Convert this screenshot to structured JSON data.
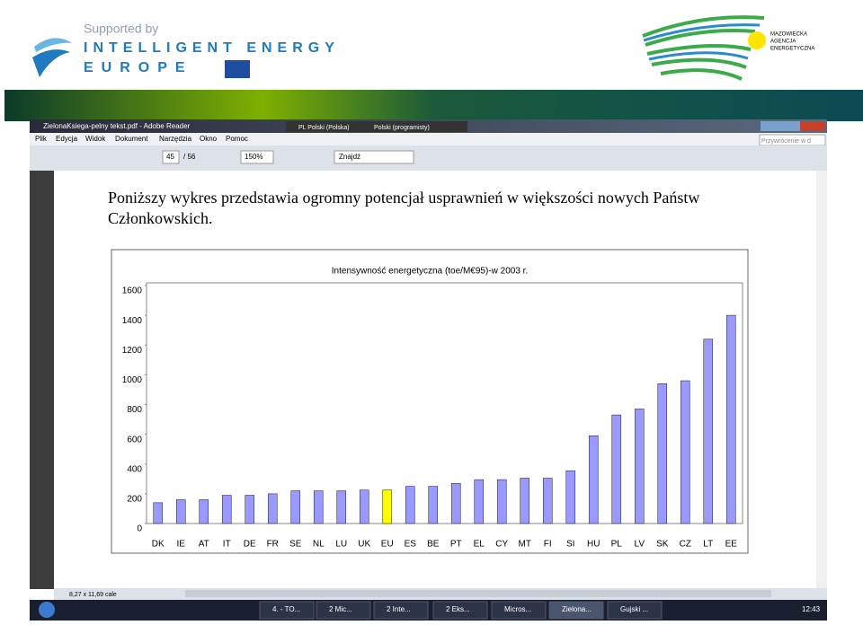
{
  "header": {
    "supported_by": "Supported by",
    "brand_line1": "INTELLIGENT ENERGY",
    "brand_line2": "EUROPE",
    "partner": [
      "MAZOWIECKA",
      "AGENCJA",
      "ENERGETYCZNA"
    ]
  },
  "window": {
    "title": "ZielonaKsiega-pelny tekst.pdf - Adobe Reader",
    "language": [
      "PL Polski (Polska)",
      "Polski (programisty)"
    ],
    "menu": [
      "Plik",
      "Edycja",
      "Widok",
      "Dokument",
      "Narzędzia",
      "Okno",
      "Pomoc"
    ],
    "restore": "Przywrócenie w d",
    "page": "45",
    "pages": "/ 56",
    "zoom": "150%",
    "search": "Znajdź",
    "status": "8,27 x 11,69 cale"
  },
  "document": {
    "paragraph": [
      "Poniższy wykres przedstawia ogromny potencjał usprawnień w większości nowych Państw",
      "Członkowskich."
    ]
  },
  "chart_data": {
    "type": "bar",
    "title": "Intensywność energetyczna (toe/M€95)-w 2003 r.",
    "categories": [
      "DK",
      "IE",
      "AT",
      "IT",
      "DE",
      "FR",
      "SE",
      "NL",
      "LU",
      "UK",
      "EU",
      "ES",
      "BE",
      "PT",
      "EL",
      "CY",
      "MT",
      "FI",
      "SI",
      "HU",
      "PL",
      "LV",
      "SK",
      "CZ",
      "LT",
      "EE"
    ],
    "values": [
      140,
      160,
      160,
      190,
      190,
      200,
      220,
      220,
      220,
      225,
      225,
      250,
      250,
      270,
      295,
      295,
      305,
      305,
      355,
      590,
      730,
      770,
      940,
      960,
      1240,
      1400
    ],
    "colors": [
      "#9999ff",
      "#9999ff",
      "#9999ff",
      "#9999ff",
      "#9999ff",
      "#9999ff",
      "#9999ff",
      "#9999ff",
      "#9999ff",
      "#9999ff",
      "#ffff00",
      "#9999ff",
      "#9999ff",
      "#9999ff",
      "#9999ff",
      "#9999ff",
      "#9999ff",
      "#9999ff",
      "#9999ff",
      "#9999ff",
      "#9999ff",
      "#9999ff",
      "#9999ff",
      "#9999ff",
      "#9999ff",
      "#9999ff"
    ],
    "ylim": [
      0,
      1600
    ],
    "yticks": [
      0,
      200,
      400,
      600,
      800,
      1000,
      1200,
      1400,
      1600
    ],
    "grid": false
  },
  "taskbar": {
    "items": [
      "4. - TO...",
      "2 Mic...",
      "2 Inte...",
      "2 Eks...",
      "Micros...",
      "Zielona...",
      "Gujski ..."
    ],
    "clock": "12:43"
  }
}
